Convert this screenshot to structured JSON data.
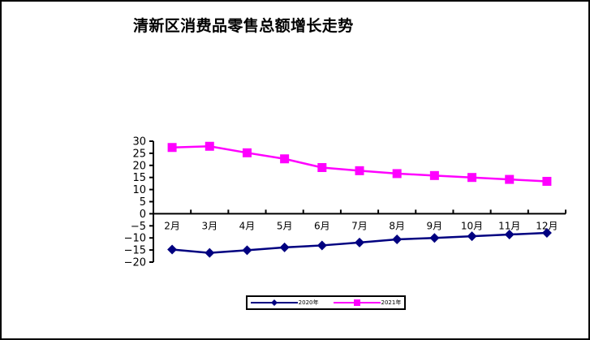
{
  "title": "清新区消费品零售总额增长走势",
  "colors": {
    "series_2020": "#000080",
    "series_2021": "#FF00FF",
    "axis": "#000000",
    "background": "#FFFFFF"
  },
  "legend": {
    "items": [
      {
        "label": "2020年",
        "color": "#000080",
        "marker": "diamond-icon"
      },
      {
        "label": "2021年",
        "color": "#FF00FF",
        "marker": "square-icon"
      }
    ]
  },
  "chart_data": {
    "type": "line",
    "title": "清新区消费品零售总额增长走势",
    "xlabel": "",
    "ylabel": "",
    "categories": [
      "2月",
      "3月",
      "4月",
      "5月",
      "6月",
      "7月",
      "8月",
      "9月",
      "10月",
      "11月",
      "12月"
    ],
    "series": [
      {
        "name": "2020年",
        "color": "#000080",
        "marker": "diamond",
        "values": [
          -14.8,
          -16.2,
          -15.1,
          -13.9,
          -13.1,
          -11.9,
          -10.6,
          -10.0,
          -9.3,
          -8.6,
          -7.9
        ]
      },
      {
        "name": "2021年",
        "color": "#FF00FF",
        "marker": "square",
        "values": [
          27.4,
          27.9,
          25.2,
          22.7,
          19.1,
          17.8,
          16.6,
          15.8,
          15.0,
          14.2,
          13.4
        ]
      }
    ],
    "ylim": [
      -20,
      30
    ],
    "yticks": [
      30,
      25,
      20,
      15,
      10,
      5,
      0,
      -5,
      -10,
      -15,
      -20
    ],
    "ytick_labels": [
      "30",
      "25",
      "20",
      "15",
      "10",
      "5",
      "0",
      "−5",
      "−10",
      "−15",
      "−20"
    ],
    "grid": false,
    "legend_position": "bottom",
    "category_axis_at": 0
  }
}
